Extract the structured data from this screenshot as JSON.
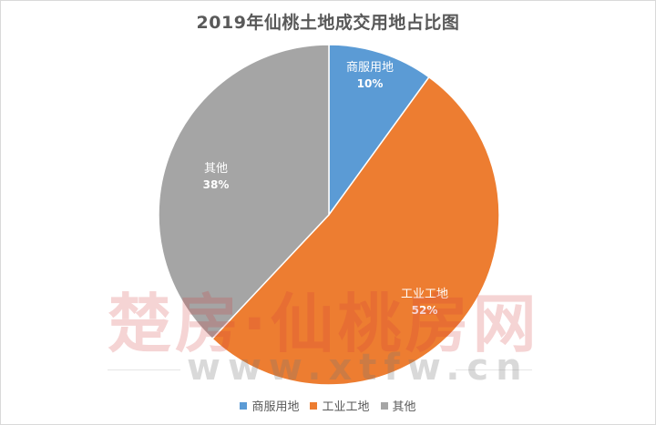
{
  "chart_data": {
    "type": "pie",
    "title": "2019年仙桃土地成交用地占比图",
    "slices": [
      {
        "name": "商服用地",
        "value": 10,
        "label": "10%",
        "color": "#5b9bd5"
      },
      {
        "name": "工业工地",
        "value": 52,
        "label": "52%",
        "color": "#ed7d31"
      },
      {
        "name": "其他",
        "value": 38,
        "label": "38%",
        "color": "#a5a5a5"
      }
    ],
    "start_angle": "12 o'clock",
    "direction": "clockwise",
    "legend_position": "bottom"
  },
  "watermark": {
    "brand": "楚房·仙桃房网",
    "url": "www.xtfw.cn"
  }
}
